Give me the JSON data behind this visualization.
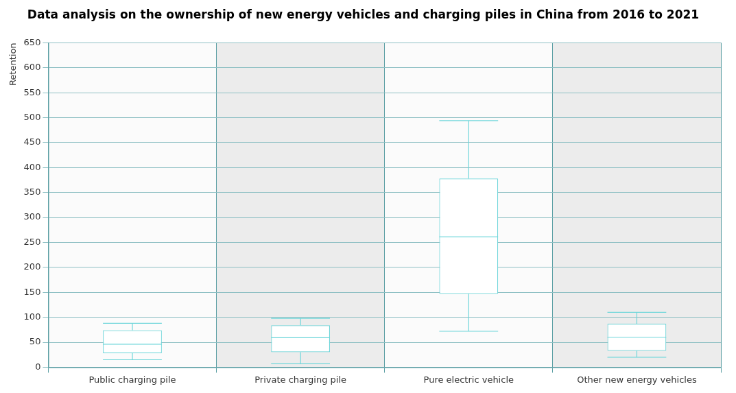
{
  "chart_data": {
    "type": "box",
    "title": "Data analysis on the ownership of new energy vehicles and charging piles in China from 2016 to 2021",
    "ylabel": "Retention",
    "categories": [
      "Public charging pile",
      "Private charging pile",
      "Pure electric vehicle",
      "Other new energy vehicles"
    ],
    "series": [
      {
        "color": "#6fd6da",
        "boxes": [
          {
            "low": 15,
            "q1": 28,
            "median": 46,
            "q3": 74,
            "high": 88
          },
          {
            "low": 7,
            "q1": 30,
            "median": 59,
            "q3": 84,
            "high": 98
          },
          {
            "low": 72,
            "q1": 147,
            "median": 261,
            "q3": 378,
            "high": 494
          },
          {
            "low": 20,
            "q1": 33,
            "median": 60,
            "q3": 87,
            "high": 110
          }
        ]
      }
    ],
    "ylim": [
      0,
      650
    ],
    "yticks": [
      0,
      50,
      100,
      150,
      200,
      250,
      300,
      350,
      400,
      450,
      500,
      550,
      600,
      650
    ],
    "grid": true
  }
}
